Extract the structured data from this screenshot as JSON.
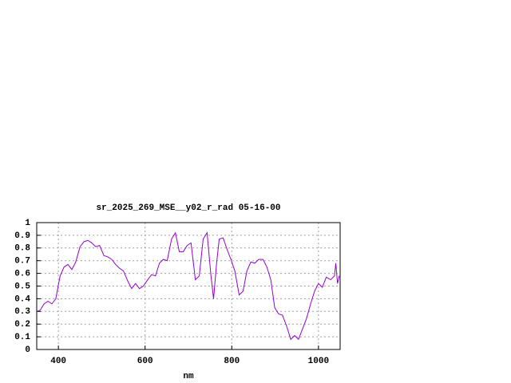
{
  "chart_data": {
    "type": "line",
    "title": "sr_2025_269_MSE__y02_r_rad 05-16-00",
    "x_label": "nm",
    "x": [
      350,
      358,
      367,
      376,
      385,
      394,
      404,
      413,
      422,
      431,
      440,
      450,
      459,
      468,
      477,
      486,
      495,
      505,
      514,
      523,
      532,
      541,
      550,
      560,
      569,
      578,
      587,
      596,
      606,
      615,
      624,
      633,
      642,
      651,
      661,
      670,
      679,
      688,
      697,
      706,
      716,
      725,
      734,
      743,
      752,
      758,
      765,
      771,
      780,
      789,
      798,
      807,
      817,
      826,
      835,
      844,
      853,
      862,
      872,
      881,
      890,
      899,
      908,
      917,
      927,
      936,
      945,
      954,
      963,
      972,
      982,
      991,
      1000,
      1009,
      1018,
      1028,
      1037,
      1040,
      1044,
      1048
    ],
    "series": [
      {
        "color": "#9400d3",
        "values": [
          0.3,
          0.31,
          0.36,
          0.38,
          0.36,
          0.4,
          0.58,
          0.65,
          0.67,
          0.63,
          0.69,
          0.81,
          0.85,
          0.86,
          0.84,
          0.81,
          0.82,
          0.74,
          0.73,
          0.71,
          0.67,
          0.64,
          0.62,
          0.54,
          0.48,
          0.52,
          0.48,
          0.5,
          0.55,
          0.59,
          0.58,
          0.68,
          0.71,
          0.7,
          0.87,
          0.92,
          0.77,
          0.77,
          0.82,
          0.84,
          0.55,
          0.58,
          0.87,
          0.92,
          0.58,
          0.4,
          0.68,
          0.87,
          0.88,
          0.79,
          0.71,
          0.62,
          0.43,
          0.46,
          0.62,
          0.69,
          0.68,
          0.71,
          0.71,
          0.65,
          0.55,
          0.33,
          0.28,
          0.27,
          0.18,
          0.08,
          0.11,
          0.08,
          0.16,
          0.24,
          0.36,
          0.46,
          0.52,
          0.49,
          0.57,
          0.55,
          0.58,
          0.68,
          0.52,
          0.58
        ]
      }
    ],
    "xlim": [
      350,
      1050
    ],
    "xticks": [
      400,
      600,
      800,
      1000
    ],
    "ylim": [
      0,
      1
    ],
    "yticks": [
      0,
      0.1,
      0.2,
      0.3,
      0.4,
      0.5,
      0.6,
      0.7,
      0.8,
      0.9,
      1
    ],
    "grid": true
  }
}
